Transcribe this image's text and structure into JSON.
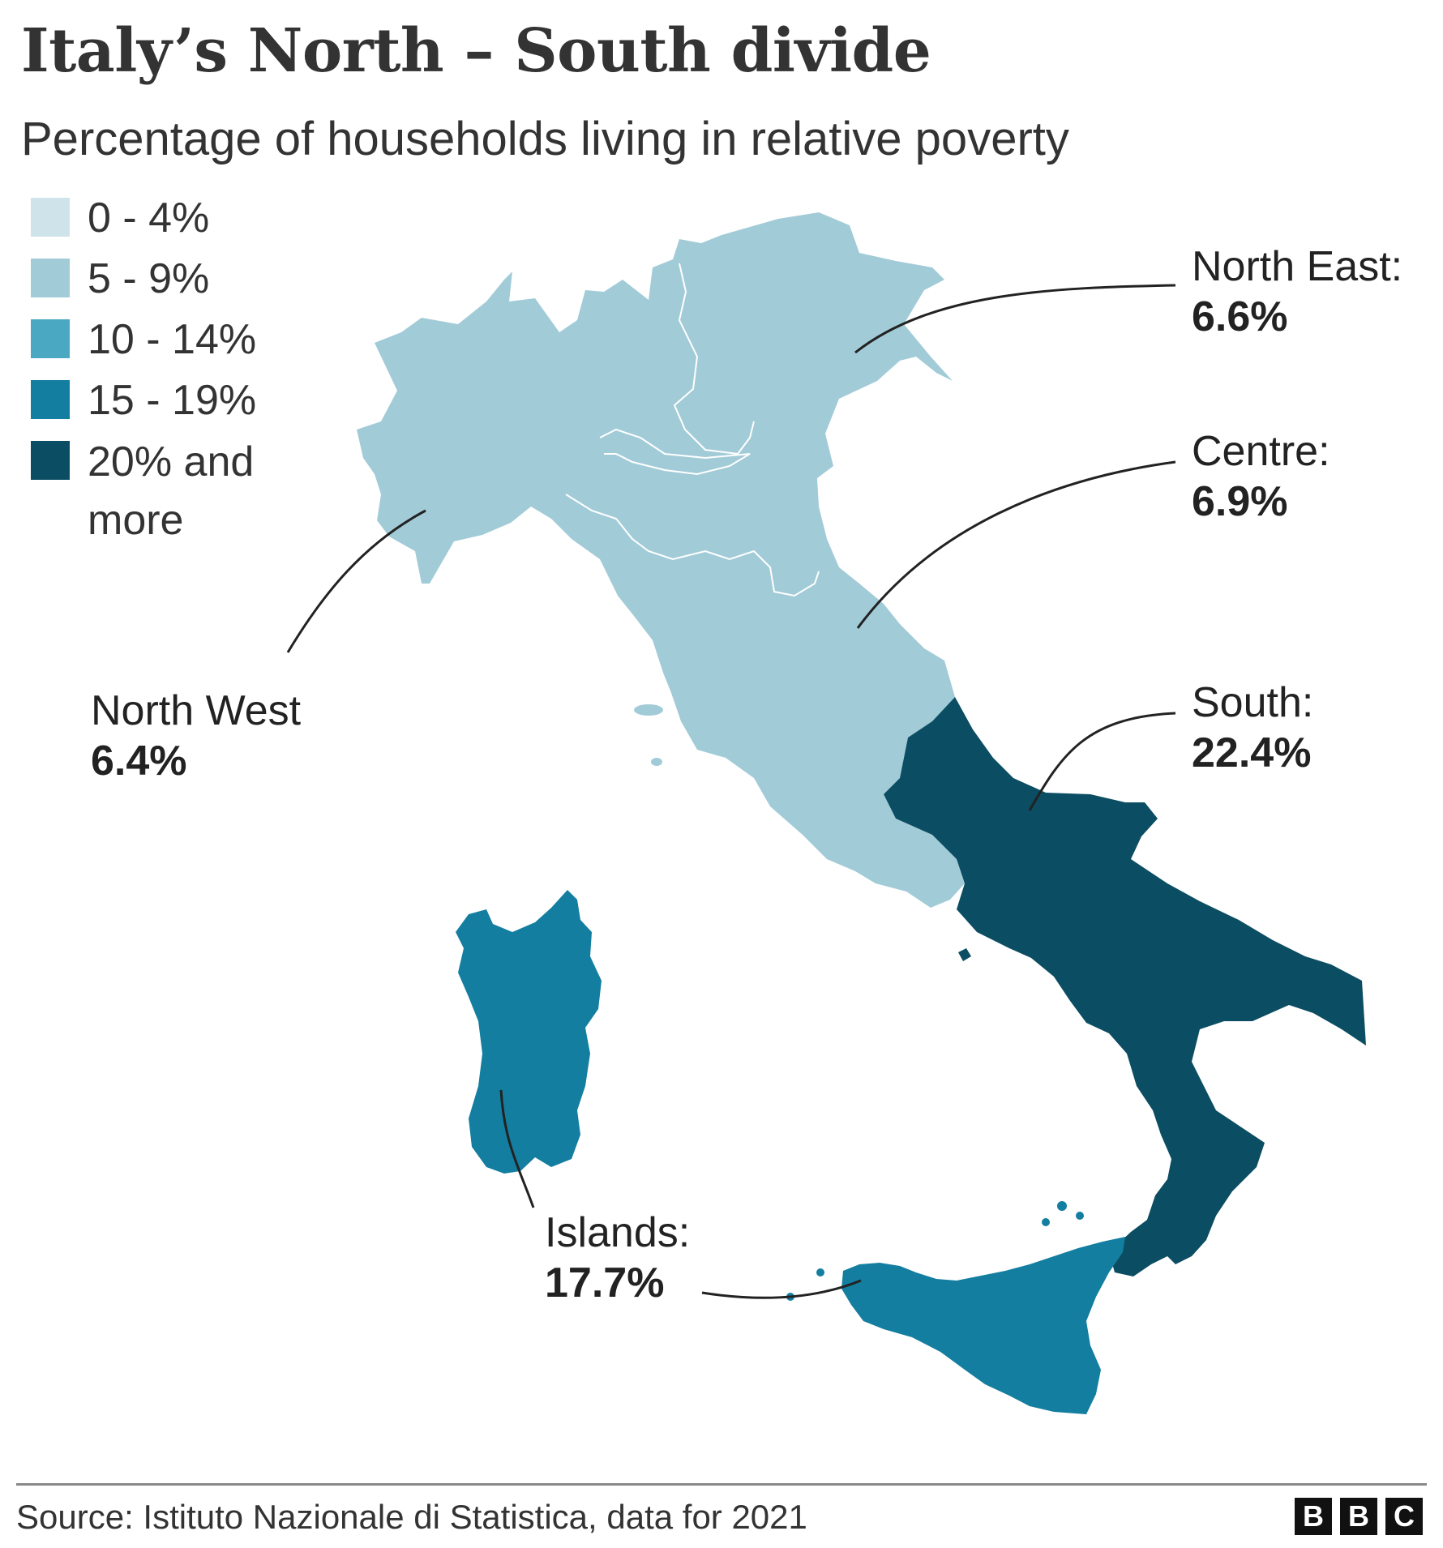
{
  "title": "Italy’s North – South divide",
  "subtitle": "Percentage of households living in relative poverty",
  "legend": [
    {
      "label": "0 - 4%",
      "color": "#cfe3ea"
    },
    {
      "label": "5 - 9%",
      "color": "#a2cbd8"
    },
    {
      "label": "10 - 14%",
      "color": "#4aa8c2"
    },
    {
      "label": "15 - 19%",
      "color": "#137ea0"
    },
    {
      "label": "20% and more",
      "color": "#0b4d62"
    }
  ],
  "regions": [
    {
      "name": "North West",
      "value": "6.4%",
      "color": "#a2cbd8"
    },
    {
      "name": "North East:",
      "value": "6.6%",
      "color": "#a2cbd8"
    },
    {
      "name": "Centre:",
      "value": "6.9%",
      "color": "#a2cbd8"
    },
    {
      "name": "South:",
      "value": "22.4%",
      "color": "#0b4d62"
    },
    {
      "name": "Islands:",
      "value": "17.7%",
      "color": "#137ea0"
    }
  ],
  "source": "Source: Istituto Nazionale di Statistica, data for 2021",
  "logo": [
    "B",
    "B",
    "C"
  ]
}
